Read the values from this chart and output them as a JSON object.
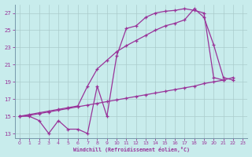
{
  "xlabel": "Windchill (Refroidissement éolien,°C)",
  "bg_color": "#c8ecec",
  "line_color": "#993399",
  "grid_color": "#aacccc",
  "xlim": [
    -0.5,
    23.5
  ],
  "ylim": [
    12.5,
    28.0
  ],
  "yticks": [
    13,
    15,
    17,
    19,
    21,
    23,
    25,
    27
  ],
  "xticks": [
    0,
    1,
    2,
    3,
    4,
    5,
    6,
    7,
    8,
    9,
    10,
    11,
    12,
    13,
    14,
    15,
    16,
    17,
    18,
    19,
    20,
    21,
    22,
    23
  ],
  "line1_x": [
    0,
    1,
    2,
    3,
    4,
    5,
    6,
    7,
    8,
    9,
    10,
    11,
    12,
    13,
    14,
    15,
    16,
    17,
    18,
    19,
    20,
    21
  ],
  "line1_y": [
    15,
    15,
    14.5,
    13.0,
    14.5,
    13.5,
    13.5,
    13.0,
    18.5,
    15.0,
    22.0,
    25.2,
    25.5,
    26.5,
    27.0,
    27.2,
    27.3,
    27.5,
    27.3,
    27.0,
    19.5,
    19.2
  ],
  "line2_x": [
    0,
    1,
    2,
    3,
    4,
    5,
    6,
    7,
    8,
    9,
    10,
    11,
    12,
    13,
    14,
    15,
    16,
    17,
    18,
    19,
    20,
    21,
    22
  ],
  "line2_y": [
    15.0,
    15.2,
    15.4,
    15.6,
    15.8,
    16.0,
    16.2,
    18.5,
    20.5,
    21.5,
    22.5,
    23.2,
    23.8,
    24.4,
    25.0,
    25.5,
    25.8,
    26.2,
    27.5,
    26.5,
    23.3,
    19.5,
    19.2
  ],
  "line3_x": [
    0,
    1,
    2,
    3,
    4,
    5,
    6,
    7,
    8,
    9,
    10,
    11,
    12,
    13,
    14,
    15,
    16,
    17,
    18,
    19,
    20,
    21,
    22
  ],
  "line3_y": [
    15.0,
    15.1,
    15.3,
    15.5,
    15.7,
    15.9,
    16.1,
    16.3,
    16.5,
    16.7,
    16.9,
    17.1,
    17.3,
    17.5,
    17.7,
    17.9,
    18.1,
    18.3,
    18.5,
    18.8,
    19.0,
    19.2,
    19.5
  ]
}
